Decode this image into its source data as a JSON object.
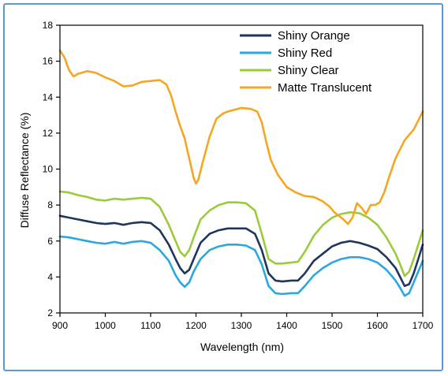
{
  "chart_data": {
    "type": "line",
    "title": "",
    "xlabel": "Wavelength (nm)",
    "ylabel": "Diffuse Reflectance (%)",
    "xlim": [
      900,
      1700
    ],
    "ylim": [
      2,
      18
    ],
    "xticks": [
      900,
      1000,
      1100,
      1200,
      1300,
      1400,
      1500,
      1600,
      1700
    ],
    "yticks": [
      2,
      4,
      6,
      8,
      10,
      12,
      14,
      16,
      18
    ],
    "grid": false,
    "legend_position": "top-right",
    "series": [
      {
        "name": "Shiny Orange",
        "color": "#1f3560",
        "x": [
          900,
          920,
          940,
          960,
          980,
          1000,
          1020,
          1040,
          1060,
          1080,
          1100,
          1120,
          1140,
          1155,
          1165,
          1175,
          1185,
          1195,
          1210,
          1230,
          1250,
          1270,
          1290,
          1310,
          1330,
          1345,
          1360,
          1375,
          1390,
          1410,
          1425,
          1440,
          1460,
          1480,
          1500,
          1520,
          1540,
          1560,
          1580,
          1600,
          1620,
          1640,
          1650,
          1660,
          1670,
          1680,
          1690,
          1700
        ],
        "y": [
          7.4,
          7.3,
          7.2,
          7.1,
          7.0,
          6.95,
          7.0,
          6.9,
          7.0,
          7.05,
          7.0,
          6.6,
          5.8,
          5.0,
          4.5,
          4.2,
          4.4,
          5.0,
          5.9,
          6.4,
          6.6,
          6.7,
          6.7,
          6.7,
          6.4,
          5.5,
          4.2,
          3.8,
          3.75,
          3.8,
          3.8,
          4.2,
          4.9,
          5.3,
          5.7,
          5.9,
          6.0,
          5.9,
          5.75,
          5.55,
          5.1,
          4.5,
          4.0,
          3.5,
          3.6,
          4.2,
          5.0,
          5.8
        ]
      },
      {
        "name": "Shiny Red",
        "color": "#29a8e0",
        "x": [
          900,
          920,
          940,
          960,
          980,
          1000,
          1020,
          1040,
          1060,
          1080,
          1100,
          1120,
          1140,
          1155,
          1165,
          1175,
          1185,
          1195,
          1210,
          1230,
          1250,
          1270,
          1290,
          1310,
          1330,
          1345,
          1360,
          1375,
          1390,
          1410,
          1425,
          1440,
          1460,
          1480,
          1500,
          1520,
          1540,
          1560,
          1580,
          1600,
          1620,
          1640,
          1650,
          1660,
          1670,
          1680,
          1690,
          1700
        ],
        "y": [
          6.25,
          6.2,
          6.1,
          6.0,
          5.9,
          5.85,
          5.95,
          5.85,
          5.95,
          6.0,
          5.9,
          5.5,
          4.9,
          4.1,
          3.7,
          3.45,
          3.7,
          4.3,
          5.0,
          5.5,
          5.7,
          5.8,
          5.8,
          5.75,
          5.5,
          4.7,
          3.5,
          3.1,
          3.05,
          3.1,
          3.1,
          3.5,
          4.1,
          4.5,
          4.8,
          5.0,
          5.1,
          5.1,
          5.0,
          4.8,
          4.4,
          3.8,
          3.4,
          2.95,
          3.1,
          3.7,
          4.3,
          4.9
        ]
      },
      {
        "name": "Shiny Clear",
        "color": "#9bcb3b",
        "x": [
          900,
          920,
          940,
          960,
          980,
          1000,
          1020,
          1040,
          1060,
          1080,
          1100,
          1120,
          1140,
          1155,
          1165,
          1175,
          1185,
          1195,
          1210,
          1230,
          1250,
          1270,
          1290,
          1310,
          1330,
          1345,
          1360,
          1375,
          1390,
          1410,
          1425,
          1440,
          1460,
          1480,
          1500,
          1520,
          1540,
          1560,
          1580,
          1600,
          1620,
          1640,
          1650,
          1660,
          1670,
          1680,
          1690,
          1700
        ],
        "y": [
          8.75,
          8.7,
          8.55,
          8.45,
          8.3,
          8.25,
          8.35,
          8.3,
          8.35,
          8.4,
          8.35,
          7.9,
          6.9,
          6.0,
          5.4,
          5.15,
          5.5,
          6.2,
          7.2,
          7.7,
          8.0,
          8.15,
          8.15,
          8.1,
          7.7,
          6.4,
          5.0,
          4.75,
          4.75,
          4.8,
          4.85,
          5.4,
          6.3,
          6.9,
          7.3,
          7.5,
          7.6,
          7.55,
          7.3,
          6.9,
          6.2,
          5.3,
          4.7,
          4.05,
          4.3,
          5.0,
          5.8,
          6.6
        ]
      },
      {
        "name": "Matte Translucent",
        "color": "#f5a623",
        "x": [
          900,
          910,
          920,
          930,
          940,
          960,
          980,
          1000,
          1020,
          1040,
          1060,
          1080,
          1100,
          1120,
          1135,
          1145,
          1155,
          1165,
          1175,
          1185,
          1195,
          1200,
          1205,
          1215,
          1230,
          1245,
          1260,
          1270,
          1285,
          1300,
          1320,
          1335,
          1345,
          1355,
          1365,
          1380,
          1400,
          1420,
          1440,
          1460,
          1480,
          1495,
          1505,
          1515,
          1525,
          1535,
          1545,
          1555,
          1565,
          1575,
          1585,
          1595,
          1605,
          1615,
          1625,
          1640,
          1660,
          1680,
          1700
        ],
        "y": [
          16.6,
          16.2,
          15.5,
          15.15,
          15.3,
          15.45,
          15.35,
          15.1,
          14.9,
          14.6,
          14.65,
          14.85,
          14.9,
          14.95,
          14.7,
          14.1,
          13.2,
          12.4,
          11.7,
          10.6,
          9.5,
          9.2,
          9.4,
          10.4,
          11.8,
          12.8,
          13.1,
          13.2,
          13.3,
          13.4,
          13.35,
          13.2,
          12.6,
          11.5,
          10.5,
          9.7,
          9.0,
          8.7,
          8.5,
          8.45,
          8.2,
          7.9,
          7.6,
          7.4,
          7.2,
          6.95,
          7.3,
          8.1,
          7.85,
          7.5,
          8.0,
          8.0,
          8.15,
          8.7,
          9.5,
          10.6,
          11.6,
          12.2,
          13.2
        ]
      }
    ]
  }
}
